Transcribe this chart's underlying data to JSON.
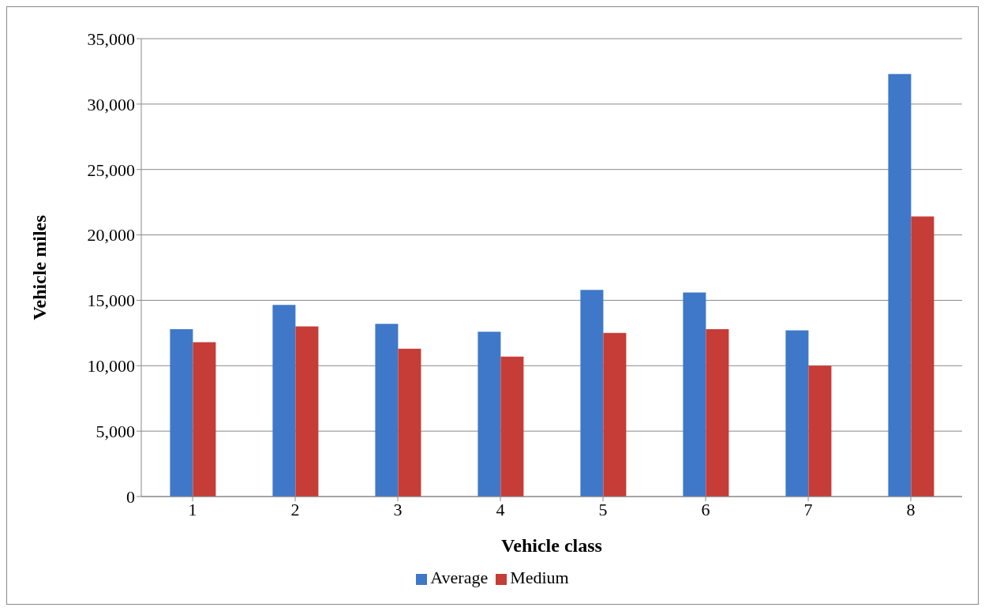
{
  "chart_data": {
    "type": "bar",
    "xlabel": "Vehicle class",
    "ylabel": "Vehicle miles",
    "categories": [
      "1",
      "2",
      "3",
      "4",
      "5",
      "6",
      "7",
      "8"
    ],
    "series": [
      {
        "name": "Average",
        "color": "#3f78c8",
        "values": [
          12800,
          14650,
          13200,
          12600,
          15800,
          15600,
          12700,
          32300
        ]
      },
      {
        "name": "Medium",
        "color": "#c63c36",
        "values": [
          11800,
          13000,
          11300,
          10700,
          12500,
          12800,
          10000,
          21400
        ]
      }
    ],
    "ylim": [
      0,
      35000
    ],
    "yticks": [
      {
        "value": 0,
        "label": "0"
      },
      {
        "value": 5000,
        "label": "5,000"
      },
      {
        "value": 10000,
        "label": "10,000"
      },
      {
        "value": 15000,
        "label": "15,000"
      },
      {
        "value": 20000,
        "label": "20,000"
      },
      {
        "value": 25000,
        "label": "25,000"
      },
      {
        "value": 30000,
        "label": "30,000"
      },
      {
        "value": 35000,
        "label": "35,000"
      }
    ],
    "grid": "y",
    "legend": "bottom"
  }
}
